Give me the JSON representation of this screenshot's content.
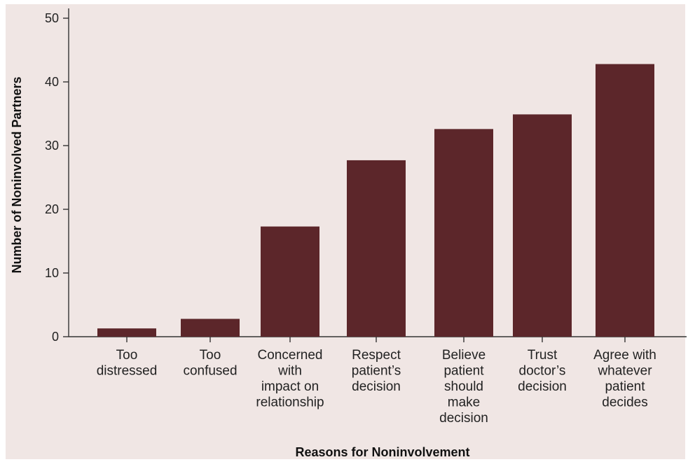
{
  "chart_data": {
    "type": "bar",
    "title": "",
    "xlabel": "Reasons for Noninvolvement",
    "ylabel": "Number of Noninvolved Partners",
    "ylim": [
      0,
      50
    ],
    "yticks": [
      0,
      10,
      20,
      30,
      40,
      50
    ],
    "grid": false,
    "legend": "none",
    "categories": [
      [
        "Too",
        "distressed"
      ],
      [
        "Too",
        "confused"
      ],
      [
        "Concerned",
        "with",
        "impact on",
        "relationship"
      ],
      [
        "Respect",
        "patient’s",
        "decision"
      ],
      [
        "Believe",
        "patient",
        "should",
        "make",
        "decision"
      ],
      [
        "Trust",
        "doctor’s",
        "decision"
      ],
      [
        "Agree with",
        "whatever",
        "patient",
        "decides"
      ]
    ],
    "values": [
      1.3,
      2.8,
      17.3,
      27.7,
      32.6,
      34.9,
      42.8
    ],
    "colors": {
      "bar": "#5c262a",
      "background": "#f0e6e4",
      "axis": "#333333"
    }
  }
}
